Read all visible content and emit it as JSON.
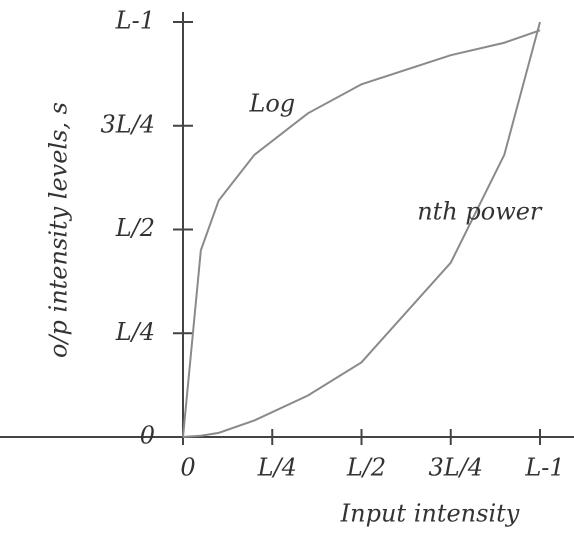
{
  "chart_data": {
    "type": "line",
    "x_label": "Input intensity",
    "y_label": "o/p intensity levels, s",
    "x": [
      0,
      0.05,
      0.1,
      0.2,
      0.35,
      0.5,
      0.75,
      0.9,
      1
    ],
    "series": [
      {
        "name": "Log",
        "color": "#8a8a8a",
        "values": [
          0,
          0.45,
          0.57,
          0.68,
          0.78,
          0.85,
          0.92,
          0.95,
          0.98
        ]
      },
      {
        "name": "nth power",
        "color": "#8a8a8a",
        "values": [
          0,
          0.003,
          0.01,
          0.04,
          0.1,
          0.18,
          0.42,
          0.68,
          1
        ]
      }
    ],
    "xlim": [
      0,
      1
    ],
    "ylim": [
      0,
      1
    ],
    "xticks": [
      0,
      {
        "value": 0.25,
        "label": "L/4"
      },
      {
        "value": 0.5,
        "label": "L/2"
      },
      {
        "value": 0.75,
        "label": "3L/4"
      },
      {
        "value": 1,
        "label": "L-1"
      }
    ],
    "yticks": [
      0,
      {
        "value": 0.25,
        "label": "L/4"
      },
      {
        "value": 0.5,
        "label": "L/2"
      },
      {
        "value": 0.75,
        "label": "3L/4"
      },
      {
        "value": 1,
        "label": "L-1"
      }
    ],
    "grid": false
  }
}
